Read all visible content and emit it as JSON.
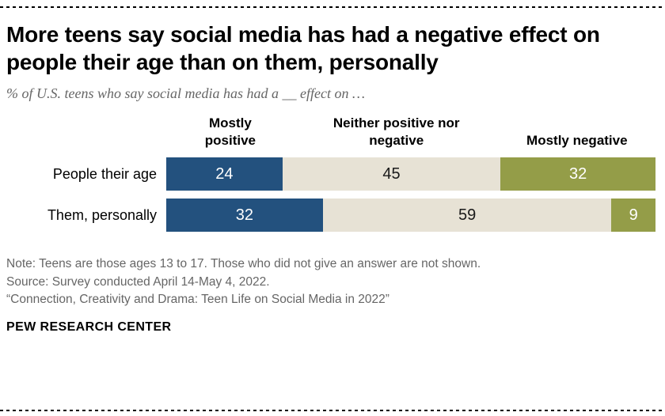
{
  "title": "More teens say social media has had a negative effect on people their age than on them, personally",
  "subtitle": "% of U.S. teens who say social media has had a __ effect on …",
  "chart_data": {
    "type": "bar",
    "orientation": "horizontal",
    "stacked": true,
    "unit": "%",
    "categories": [
      "People their age",
      "Them, personally"
    ],
    "series": [
      {
        "name": "Mostly positive",
        "color": "#23517e",
        "text_color": "#ffffff",
        "values": [
          24,
          32
        ]
      },
      {
        "name": "Neither positive nor negative",
        "color": "#e7e2d5",
        "text_color": "#1a1a1a",
        "values": [
          45,
          59
        ]
      },
      {
        "name": "Mostly negative",
        "color": "#949d48",
        "text_color": "#ffffff",
        "values": [
          32,
          9
        ]
      }
    ],
    "legend_position": "top",
    "grid": false
  },
  "notes": [
    "Note: Teens are those ages 13 to 17. Those who did not give an answer are not shown.",
    "Source: Survey conducted April 14-May 4, 2022.",
    "“Connection, Creativity and Drama: Teen Life on Social Media in 2022”"
  ],
  "footer": "PEW RESEARCH CENTER"
}
